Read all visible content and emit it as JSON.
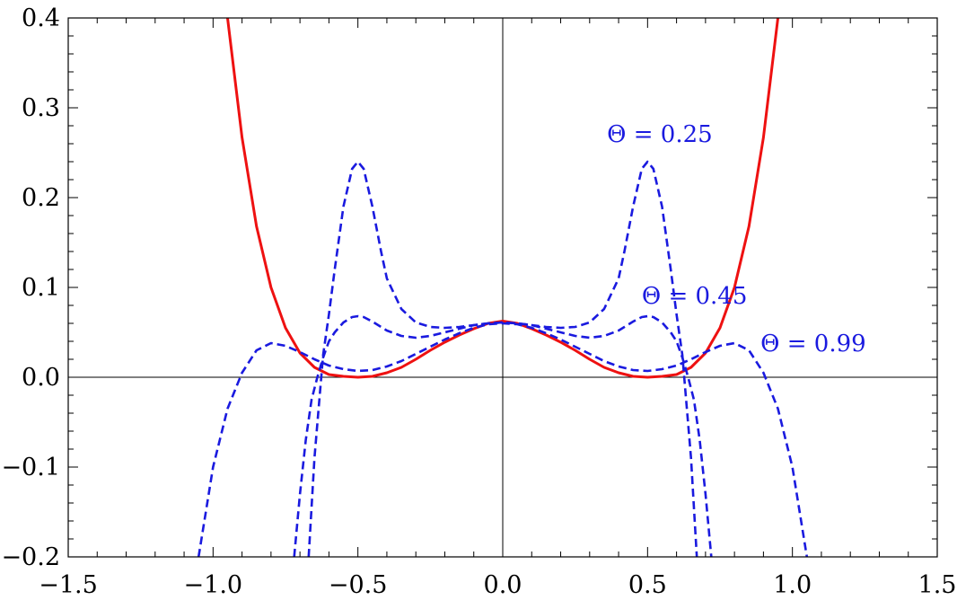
{
  "chart_data": {
    "type": "line",
    "title": "",
    "xlabel": "",
    "ylabel": "",
    "xlim": [
      -1.5,
      1.5
    ],
    "ylim": [
      -0.2,
      0.4
    ],
    "x_ticks": [
      -1.5,
      -1.0,
      -0.5,
      0.0,
      0.5,
      1.0,
      1.5
    ],
    "x_tick_labels": [
      "−1.5",
      "−1.0",
      "−0.5",
      "0.0",
      "0.5",
      "1.0",
      "1.5"
    ],
    "y_ticks": [
      -0.2,
      -0.1,
      0.0,
      0.1,
      0.2,
      0.3,
      0.4
    ],
    "y_tick_labels": [
      "−0.2",
      "−0.1",
      "0.0",
      "0.1",
      "0.2",
      "0.3",
      "0.4"
    ],
    "grid": false,
    "axes_lines": true,
    "series": [
      {
        "style": "solid",
        "color": "#ee1111",
        "x": [
          -0.95,
          -0.9,
          -0.85,
          -0.8,
          -0.75,
          -0.7,
          -0.65,
          -0.6,
          -0.55,
          -0.5,
          -0.45,
          -0.4,
          -0.35,
          -0.3,
          -0.25,
          -0.2,
          -0.15,
          -0.1,
          -0.05,
          0.0,
          0.05,
          0.1,
          0.15,
          0.2,
          0.25,
          0.3,
          0.35,
          0.4,
          0.45,
          0.5,
          0.55,
          0.6,
          0.65,
          0.7,
          0.75,
          0.8,
          0.85,
          0.9,
          0.95
        ],
        "y": [
          0.4,
          0.267,
          0.168,
          0.1,
          0.055,
          0.027,
          0.011,
          0.003,
          0.001,
          0.0,
          0.001,
          0.005,
          0.011,
          0.02,
          0.03,
          0.039,
          0.047,
          0.054,
          0.06,
          0.0625,
          0.06,
          0.054,
          0.047,
          0.039,
          0.03,
          0.02,
          0.011,
          0.005,
          0.001,
          0.0,
          0.001,
          0.003,
          0.011,
          0.027,
          0.055,
          0.1,
          0.168,
          0.267,
          0.4
        ]
      },
      {
        "style": "dashed",
        "color": "#1a1adf",
        "x": [
          -0.67,
          -0.65,
          -0.62,
          -0.6,
          -0.58,
          -0.55,
          -0.52,
          -0.5,
          -0.48,
          -0.45,
          -0.42,
          -0.4,
          -0.35,
          -0.3,
          -0.25,
          -0.2,
          -0.15,
          -0.1,
          -0.05,
          0.0,
          0.05,
          0.1,
          0.15,
          0.2,
          0.25,
          0.3,
          0.35,
          0.4,
          0.42,
          0.45,
          0.48,
          0.5,
          0.52,
          0.55,
          0.58,
          0.6,
          0.62,
          0.65,
          0.67
        ],
        "y": [
          -0.2,
          -0.09,
          0.025,
          0.07,
          0.12,
          0.19,
          0.232,
          0.24,
          0.232,
          0.19,
          0.14,
          0.11,
          0.076,
          0.061,
          0.056,
          0.055,
          0.056,
          0.058,
          0.06,
          0.061,
          0.06,
          0.058,
          0.056,
          0.055,
          0.056,
          0.061,
          0.076,
          0.11,
          0.14,
          0.19,
          0.232,
          0.24,
          0.232,
          0.19,
          0.12,
          0.07,
          0.025,
          -0.09,
          -0.2
        ]
      },
      {
        "style": "dashed",
        "color": "#1a1adf",
        "x": [
          -0.72,
          -0.7,
          -0.68,
          -0.66,
          -0.64,
          -0.62,
          -0.6,
          -0.58,
          -0.55,
          -0.52,
          -0.5,
          -0.48,
          -0.45,
          -0.4,
          -0.35,
          -0.3,
          -0.25,
          -0.2,
          -0.15,
          -0.1,
          -0.05,
          0.0,
          0.05,
          0.1,
          0.15,
          0.2,
          0.25,
          0.3,
          0.35,
          0.4,
          0.45,
          0.48,
          0.5,
          0.52,
          0.55,
          0.58,
          0.6,
          0.62,
          0.64,
          0.66,
          0.68,
          0.7,
          0.72
        ],
        "y": [
          -0.2,
          -0.13,
          -0.07,
          -0.025,
          0.0,
          0.022,
          0.04,
          0.05,
          0.061,
          0.067,
          0.068,
          0.067,
          0.062,
          0.052,
          0.046,
          0.044,
          0.046,
          0.05,
          0.054,
          0.058,
          0.06,
          0.061,
          0.06,
          0.058,
          0.054,
          0.05,
          0.046,
          0.044,
          0.046,
          0.052,
          0.062,
          0.067,
          0.068,
          0.067,
          0.061,
          0.05,
          0.04,
          0.022,
          0.0,
          -0.025,
          -0.07,
          -0.13,
          -0.2
        ]
      },
      {
        "style": "dashed",
        "color": "#1a1adf",
        "x": [
          -1.05,
          -1.0,
          -0.95,
          -0.9,
          -0.85,
          -0.8,
          -0.75,
          -0.7,
          -0.65,
          -0.6,
          -0.55,
          -0.5,
          -0.45,
          -0.4,
          -0.35,
          -0.3,
          -0.25,
          -0.2,
          -0.15,
          -0.1,
          -0.05,
          0.0,
          0.05,
          0.1,
          0.15,
          0.2,
          0.25,
          0.3,
          0.35,
          0.4,
          0.45,
          0.5,
          0.55,
          0.6,
          0.65,
          0.7,
          0.75,
          0.8,
          0.85,
          0.9,
          0.95,
          1.0,
          1.05
        ],
        "y": [
          -0.2,
          -0.1,
          -0.035,
          0.005,
          0.03,
          0.038,
          0.035,
          0.028,
          0.02,
          0.013,
          0.009,
          0.007,
          0.008,
          0.012,
          0.018,
          0.026,
          0.034,
          0.042,
          0.049,
          0.055,
          0.059,
          0.06,
          0.059,
          0.055,
          0.049,
          0.042,
          0.034,
          0.026,
          0.018,
          0.012,
          0.008,
          0.007,
          0.009,
          0.013,
          0.02,
          0.028,
          0.035,
          0.038,
          0.03,
          0.005,
          -0.035,
          -0.1,
          -0.2
        ]
      }
    ],
    "annotations": [
      {
        "text": "Θ = 0.25",
        "x": 0.36,
        "y": 0.262,
        "color": "#1a1adf"
      },
      {
        "text": "Θ = 0.45",
        "x": 0.48,
        "y": 0.082,
        "color": "#1a1adf"
      },
      {
        "text": "Θ = 0.99",
        "x": 0.89,
        "y": 0.029,
        "color": "#1a1adf"
      }
    ]
  }
}
